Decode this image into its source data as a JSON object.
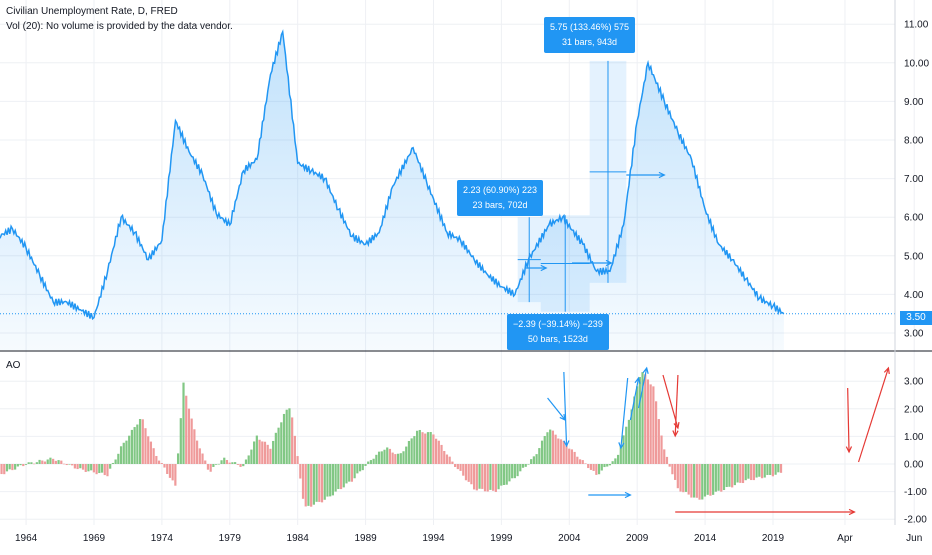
{
  "header": {
    "title": "Civilian Unemployment Rate, D, FRED",
    "volume_note": "Vol (20): No volume is provided by the data vendor."
  },
  "indicator": {
    "label": "AO"
  },
  "last_price_label": "3.50",
  "measurements": [
    {
      "line1": "2.23 (60.90%) 223",
      "line2": "23 bars, 702d"
    },
    {
      "line1": "−2.39 (−39.14%) −239",
      "line2": "50 bars, 1523d"
    },
    {
      "line1": "5.75 (133.46%) 575",
      "line2": "31 bars, 943d"
    }
  ],
  "colors": {
    "line": "#2196f3",
    "area": "#2196f3",
    "ao_up": "#26a69a",
    "ao_green": "#81c784",
    "ao_red": "#ef9a9a",
    "arrow_red": "#e53935",
    "arrow_blue": "#2196f3"
  },
  "chart_data": [
    {
      "type": "area",
      "title": "Civilian Unemployment Rate, D, FRED",
      "x_ticks": [
        "1964",
        "1969",
        "1974",
        "1979",
        "1984",
        "1989",
        "1994",
        "1999",
        "2004",
        "2009",
        "2014",
        "2019",
        "Apr",
        "Jun"
      ],
      "y_ticks": [
        "3.00",
        "4.00",
        "5.00",
        "6.00",
        "7.00",
        "8.00",
        "9.00",
        "10.00",
        "11.00"
      ],
      "ylim": [
        2.7,
        11.4
      ],
      "x": [
        1960.0,
        1961.0,
        1962.0,
        1963.0,
        1964.0,
        1965.0,
        1966.0,
        1967.0,
        1968.0,
        1969.0,
        1970.0,
        1971.0,
        1972.0,
        1973.0,
        1974.0,
        1975.0,
        1976.0,
        1977.0,
        1978.0,
        1979.0,
        1980.0,
        1981.0,
        1982.0,
        1982.9,
        1984.0,
        1985.0,
        1986.0,
        1987.0,
        1988.0,
        1989.0,
        1990.0,
        1991.0,
        1992.5,
        1993.5,
        1995.0,
        1996.0,
        1997.0,
        1998.0,
        1999.0,
        2000.0,
        2001.0,
        2002.5,
        2003.5,
        2005.0,
        2006.0,
        2007.0,
        2008.0,
        2009.0,
        2009.8,
        2011.0,
        2012.0,
        2013.0,
        2014.0,
        2015.0,
        2016.0,
        2017.0,
        2018.0,
        2019.0,
        2019.8
      ],
      "y": [
        6.5,
        6.0,
        5.5,
        5.7,
        5.2,
        4.5,
        3.8,
        3.8,
        3.6,
        3.4,
        4.6,
        6.0,
        5.6,
        4.9,
        5.4,
        8.5,
        7.7,
        7.1,
        6.1,
        5.8,
        7.2,
        7.5,
        9.7,
        10.8,
        7.4,
        7.2,
        7.0,
        6.2,
        5.5,
        5.3,
        5.6,
        6.8,
        7.8,
        6.9,
        5.6,
        5.4,
        4.9,
        4.5,
        4.2,
        4.0,
        4.9,
        5.8,
        6.0,
        5.3,
        4.6,
        4.6,
        5.8,
        8.5,
        10.0,
        9.0,
        8.2,
        7.5,
        6.2,
        5.3,
        4.9,
        4.4,
        3.9,
        3.7,
        3.5
      ]
    },
    {
      "type": "bar",
      "title": "AO",
      "y_ticks": [
        "-2.00",
        "-1.00",
        "0.00",
        "1.00",
        "2.00",
        "3.00"
      ],
      "ylim": [
        -2.3,
        3.6
      ],
      "x": [
        1960.0,
        1962.0,
        1964.0,
        1966.0,
        1968.0,
        1970.0,
        1971.0,
        1972.5,
        1973.5,
        1975.0,
        1975.6,
        1976.5,
        1977.5,
        1978.5,
        1980.0,
        1981.0,
        1982.0,
        1983.0,
        1983.5,
        1984.5,
        1986.0,
        1988.0,
        1989.5,
        1990.5,
        1991.5,
        1992.8,
        1994.0,
        1995.5,
        1997.0,
        1998.5,
        2000.0,
        2001.5,
        2002.5,
        2004.0,
        2006.0,
        2007.5,
        2008.5,
        2009.3,
        2010.2,
        2011.0,
        2012.0,
        2013.5,
        2015.0,
        2017.0,
        2019.0,
        2019.8
      ],
      "values": [
        -0.2,
        -0.4,
        0.0,
        0.2,
        -0.2,
        -0.4,
        0.6,
        1.7,
        0.4,
        -0.8,
        2.9,
        1.0,
        -0.3,
        0.2,
        -0.1,
        1.0,
        0.6,
        1.8,
        2.1,
        -1.6,
        -1.3,
        -0.6,
        0.2,
        0.6,
        0.3,
        1.2,
        1.1,
        0.0,
        -0.9,
        -1.0,
        -0.5,
        0.3,
        1.3,
        0.6,
        -0.4,
        0.2,
        1.8,
        3.4,
        2.8,
        0.5,
        -0.9,
        -1.3,
        -1.0,
        -0.6,
        -0.4,
        -0.3
      ]
    }
  ]
}
